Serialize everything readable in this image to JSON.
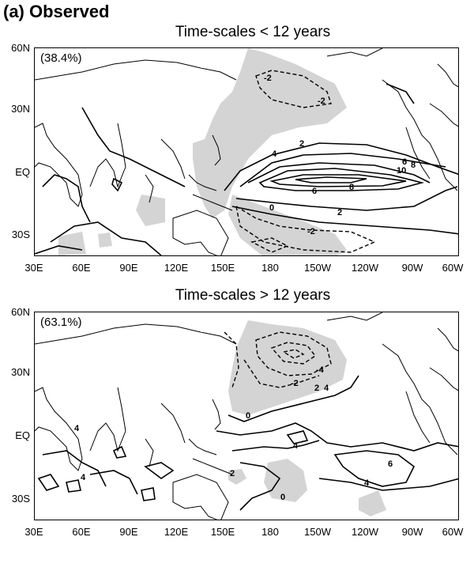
{
  "figure_title": "(a) Observed",
  "panels": [
    {
      "title": "Time-scales < 12 years",
      "variance": "(38.4%)",
      "contour_labels": [
        "-2",
        "-2",
        "2",
        "4",
        "6",
        "8",
        "10",
        "0",
        "2",
        "6",
        "8",
        "-2"
      ]
    },
    {
      "title": "Time-scales > 12 years",
      "variance": "(63.1%)",
      "contour_labels": [
        "-4",
        "-2",
        "0",
        "2",
        "4",
        "4",
        "4",
        "2",
        "6",
        "4",
        "0",
        "4"
      ]
    }
  ],
  "lat_ticks": [
    "60N",
    "30N",
    "EQ",
    "30S"
  ],
  "lon_ticks": [
    "30E",
    "60E",
    "90E",
    "120E",
    "150E",
    "180",
    "150W",
    "120W",
    "90W",
    "60W"
  ],
  "colors": {
    "shading": "#d4d4d4",
    "contour": "#000000",
    "coast": "#000000"
  }
}
